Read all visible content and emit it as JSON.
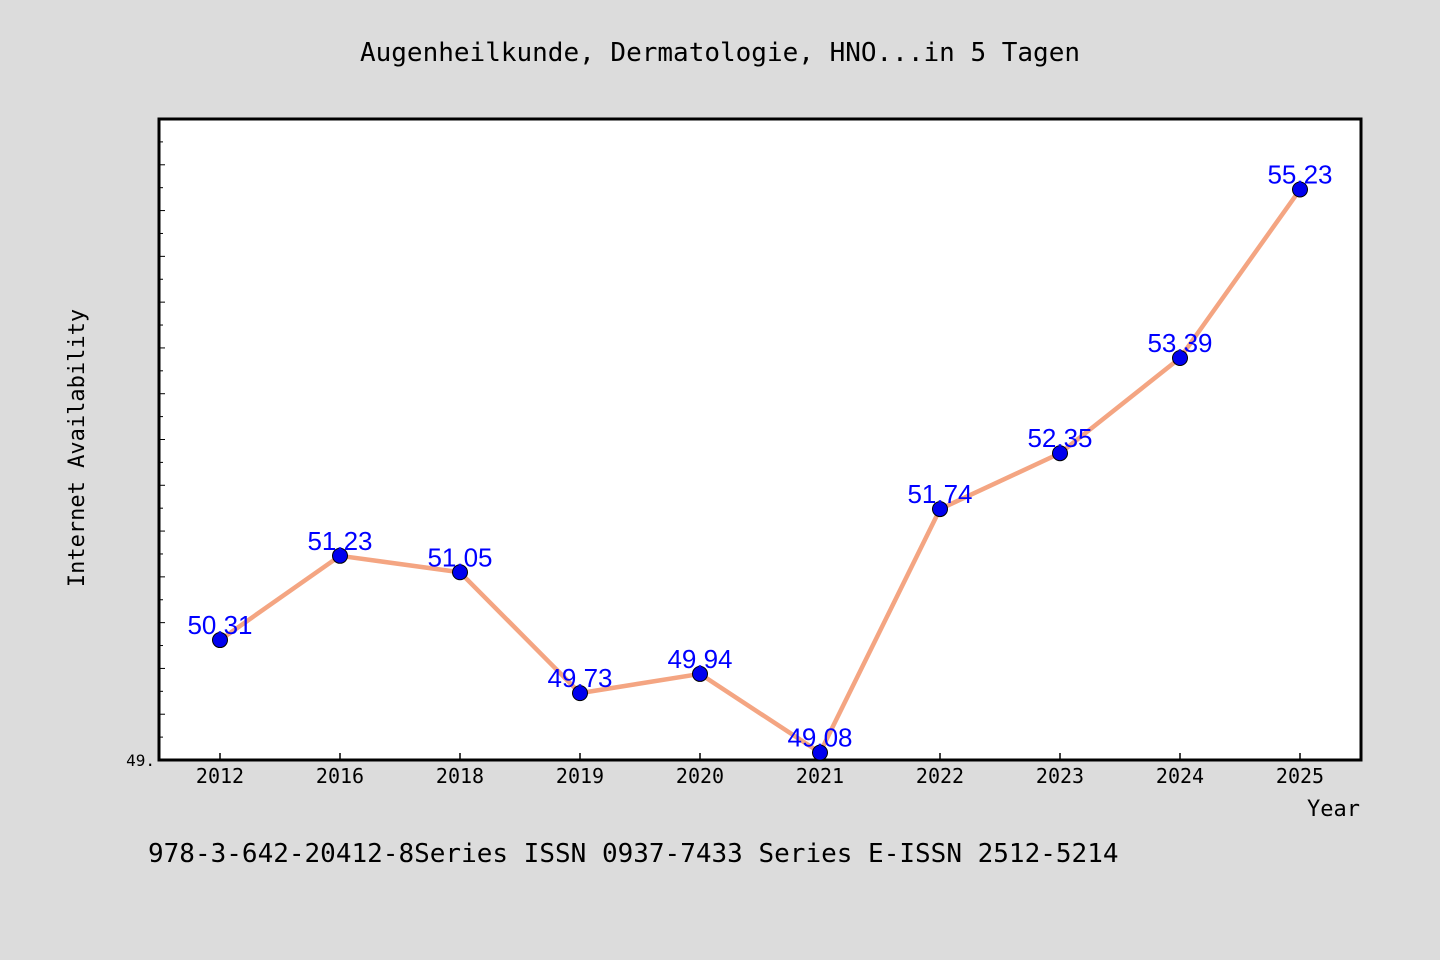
{
  "chart_data": {
    "type": "line",
    "title": "Augenheilkunde, Dermatologie, HNO...in 5 Tagen",
    "xlabel": "Year",
    "ylabel": "Internet Availability",
    "categories": [
      "2012",
      "2016",
      "2018",
      "2019",
      "2020",
      "2021",
      "2022",
      "2023",
      "2024",
      "2025"
    ],
    "series": [
      {
        "values": [
          50.31,
          51.23,
          51.05,
          49.73,
          49.94,
          49.08,
          51.74,
          52.35,
          53.39,
          55.23
        ]
      }
    ],
    "data_labels": [
      "50.31",
      "51.23",
      "51.05",
      "49.73",
      "49.94",
      "49.08",
      "51.74",
      "52.35",
      "53.39",
      "55.23"
    ],
    "ylim": [
      49.0,
      56.0
    ],
    "y_tick_label": "49.",
    "grid": false,
    "line_color": "#f4a582",
    "marker_color": "#0000ee",
    "label_color": "#0000ff"
  },
  "footer": "978-3-642-20412-8Series ISSN 0937-7433 Series E-ISSN 2512-5214"
}
